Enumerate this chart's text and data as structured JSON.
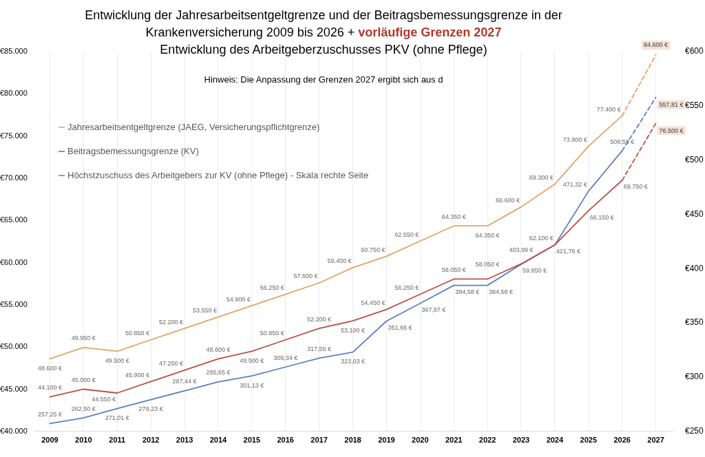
{
  "chart_data": {
    "type": "line",
    "title": "Entwicklung der Jahresarbeitsentgeltgrenze und der Beitragsbemessungsgrenze in der Krankenversicherung 2009 bis 2026 + vorläufige Grenzen 2027",
    "subtitle": "Entwicklung des Arbeitgeberzuschusses PKV (ohne Pflege)",
    "annotations": [
      "Hinweis: Die Anpassung der Grenzen 2027 ergibt sich aus d"
    ],
    "categories": [
      "2009",
      "2010",
      "2011",
      "2012",
      "2013",
      "2014",
      "2015",
      "2016",
      "2017",
      "2018",
      "2019",
      "2020",
      "2021",
      "2022",
      "2023",
      "2024",
      "2025",
      "2026",
      "2027"
    ],
    "series": [
      {
        "name": "Jahresarbeitsentgeltgrenze (JAEG, Versicherungspflichtgrenze)",
        "color": "#e3a362",
        "values": [
          48600,
          49950,
          49500,
          50850,
          52200,
          53550,
          54900,
          56250,
          57600,
          59400,
          60750,
          62550,
          64350,
          64350,
          66600,
          69300,
          73800,
          77400,
          null
        ],
        "value_labels": [
          "48.600 €",
          "49.950 €",
          "49.500 €",
          "50.850 €",
          "52.200 €",
          "53.550 €",
          "54.900 €",
          "56.250 €",
          "57.600 €",
          "59.400 €",
          "60.750 €",
          "62.550 €",
          "64.350 €",
          "64.350 €",
          "66.600 €",
          "69.300 €",
          "73.800 €",
          "77.400 €",
          null
        ]
      },
      {
        "name": "Beitragsbemessungsgrenze (KV)",
        "color": "#b9504a",
        "values": [
          44100,
          45000,
          44550,
          45900,
          47250,
          48600,
          49500,
          50850,
          52200,
          53100,
          54450,
          56250,
          58050,
          58050,
          59850,
          62100,
          66150,
          69750,
          null
        ],
        "value_labels": [
          "44.100 €",
          "45.000 €",
          "44.550 €",
          "45.900 €",
          "47.250 €",
          "48.600 €",
          "49.500 €",
          "50.850 €",
          "52.200 €",
          "53.100 €",
          "54.450 €",
          "56.250 €",
          "58.050 €",
          "58.050 €",
          "59.850 €",
          "62.100 €",
          "66.150 €",
          "69.750 €",
          null
        ]
      },
      {
        "name": "Höchstzuschuss des Arbeitgebers zur KV (ohne Pflege) - Skala rechte Seite",
        "color": "#5b7fc1",
        "axis": "y2",
        "values": [
          257.25,
          262.5,
          271.01,
          279.23,
          287.44,
          295.65,
          301.13,
          309.34,
          317.55,
          323.03,
          351.66,
          367.97,
          384.58,
          384.58,
          403.99,
          421.76,
          471.32,
          508.59,
          null
        ],
        "value_labels": [
          "257,25 €",
          "262,50 €",
          "271,01 €",
          "279,23 €",
          "287,44 €",
          "295,65 €",
          "301,13 €",
          "309,34 €",
          "317,55 €",
          "323,03 €",
          "351,66 €",
          "367,97 €",
          "384,58 €",
          "384,58 €",
          "403,99 €",
          "421,76 €",
          "471,32 €",
          "508,59 €",
          null
        ]
      },
      {
        "color": "#e3a362",
        "line_style": "dashed",
        "values": [
          null,
          null,
          null,
          null,
          null,
          null,
          null,
          null,
          null,
          null,
          null,
          null,
          null,
          null,
          null,
          null,
          null,
          77400,
          84600
        ],
        "value_labels": [
          null,
          null,
          null,
          null,
          null,
          null,
          null,
          null,
          null,
          null,
          null,
          null,
          null,
          null,
          null,
          null,
          null,
          null,
          "84.600 €"
        ]
      },
      {
        "color": "#b9504a",
        "line_style": "dashed",
        "values": [
          null,
          null,
          null,
          null,
          null,
          null,
          null,
          null,
          null,
          null,
          null,
          null,
          null,
          null,
          null,
          null,
          null,
          69750,
          76500
        ],
        "value_labels": [
          null,
          null,
          null,
          null,
          null,
          null,
          null,
          null,
          null,
          null,
          null,
          null,
          null,
          null,
          null,
          null,
          null,
          null,
          "76.500 €"
        ]
      },
      {
        "color": "#5b7fc1",
        "line_style": "dashed",
        "axis": "y2",
        "values": [
          null,
          null,
          null,
          null,
          null,
          null,
          null,
          null,
          null,
          null,
          null,
          null,
          null,
          null,
          null,
          null,
          null,
          508.59,
          557.81
        ],
        "value_labels": [
          null,
          null,
          null,
          null,
          null,
          null,
          null,
          null,
          null,
          null,
          null,
          null,
          null,
          null,
          null,
          null,
          null,
          null,
          "557,81 €"
        ]
      }
    ],
    "ylim": [
      40000,
      85000
    ],
    "yticks": [
      {
        "value": 40000,
        "label": "€40.000"
      },
      {
        "value": 45000,
        "label": "€45.000"
      },
      {
        "value": 50000,
        "label": "€50.000"
      },
      {
        "value": 55000,
        "label": "€55.000"
      },
      {
        "value": 60000,
        "label": "€60.000"
      },
      {
        "value": 65000,
        "label": "€65.000"
      },
      {
        "value": 70000,
        "label": "€70.000"
      },
      {
        "value": 75000,
        "label": "€75.000"
      },
      {
        "value": 80000,
        "label": "€80.000"
      },
      {
        "value": 85000,
        "label": "€85.000"
      }
    ],
    "y2lim": [
      250,
      600
    ],
    "y2ticks": [
      {
        "value": 250,
        "label": "€250"
      },
      {
        "value": 300,
        "label": "€300"
      },
      {
        "value": 350,
        "label": "€350"
      },
      {
        "value": 400,
        "label": "€400"
      },
      {
        "value": 450,
        "label": "€450"
      },
      {
        "value": 500,
        "label": "€500"
      },
      {
        "value": 550,
        "label": "€550"
      },
      {
        "value": 600,
        "label": "€600"
      }
    ],
    "grid": "x",
    "legend": "top left"
  }
}
